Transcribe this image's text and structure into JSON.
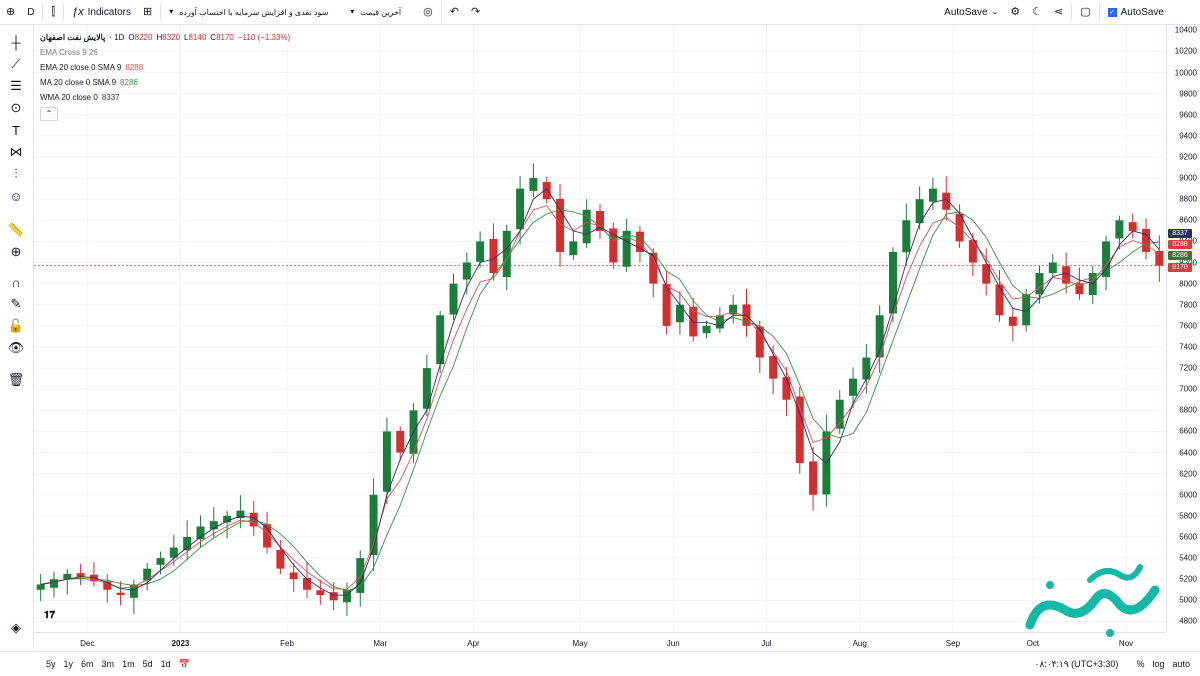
{
  "topbar": {
    "symbol": "D",
    "indicators_label": "Indicators",
    "dropdown_1": "سود نقدی و افزایش سرمایه با احتساب آورده",
    "dropdown_2": "آخرین قیمت",
    "autosave_label": "AutoSave",
    "autosave_check_label": "AutoSave"
  },
  "legend": {
    "symbol": "پالایش نفت اصفهان",
    "interval": "· 1D",
    "open_label": "O",
    "open": "8220",
    "high_label": "H",
    "high": "8320",
    "low_label": "L",
    "low": "8140",
    "close_label": "C",
    "close": "8170",
    "change": "−110 (−1.33%)",
    "ema_cross": "EMA Cross 9 26",
    "ema_row_label": "EMA 20 close 0 SMA 9",
    "ema_row_value": "8288",
    "ma_row_label": "MA 20 close 0 SMA 9",
    "ma_row_value": "8286",
    "wma_row_label": "WMA 20 close 0",
    "wma_row_value": "8337"
  },
  "price_ticks": [
    "10400",
    "10200",
    "10000",
    "9800",
    "9600",
    "9400",
    "9200",
    "9000",
    "8800",
    "8600",
    "8400",
    "8200",
    "8000",
    "7800",
    "7600",
    "7400",
    "7200",
    "7000",
    "6800",
    "6600",
    "6400",
    "6200",
    "6000",
    "5800",
    "5600",
    "5400",
    "5200",
    "5000",
    "4800"
  ],
  "time_ticks": [
    "Dec",
    "2023",
    "Feb",
    "Mar",
    "Apr",
    "May",
    "Jun",
    "Jul",
    "Aug",
    "Sep",
    "Oct",
    "Nov"
  ],
  "price_tags": [
    {
      "value": "8337",
      "color": "#2a2e6e"
    },
    {
      "value": "8288",
      "color": "#e03a3a"
    },
    {
      "value": "8286",
      "color": "#2e7d32"
    },
    {
      "value": "8170",
      "color": "#e03a3a"
    }
  ],
  "bottombar": {
    "ranges": [
      "5y",
      "1y",
      "6m",
      "3m",
      "1m",
      "5d",
      "1d"
    ],
    "time": "۰۸:۰۴:۱۹ (UTC+3:30)",
    "percent": "%",
    "log": "log",
    "auto": "auto"
  },
  "colors": {
    "up": "#26a69a",
    "up_dark": "#1b7f3b",
    "down": "#d32f2f",
    "ema": "#e05050",
    "ma": "#3e8e41",
    "wma": "#3b2a6b"
  },
  "chart_data": {
    "type": "candlestick",
    "x_axis_range": [
      "Nov 2022",
      "Nov 2023"
    ],
    "ylim": [
      4700,
      10450
    ],
    "last_price": 8170,
    "closes": [
      5150,
      5200,
      5250,
      5220,
      5180,
      5100,
      5050,
      5150,
      5300,
      5400,
      5500,
      5600,
      5700,
      5750,
      5800,
      5850,
      5700,
      5500,
      5300,
      5200,
      5100,
      5050,
      5000,
      5100,
      5400,
      6000,
      6600,
      6400,
      6800,
      7200,
      7700,
      8000,
      8200,
      8400,
      8100,
      8500,
      8900,
      9000,
      8800,
      8300,
      8400,
      8700,
      8500,
      8200,
      8500,
      8300,
      8000,
      7600,
      7800,
      7500,
      7600,
      7700,
      7800,
      7600,
      7300,
      7100,
      6900,
      6300,
      6000,
      6600,
      6900,
      7100,
      7300,
      7700,
      8300,
      8600,
      8800,
      8900,
      8700,
      8400,
      8200,
      8000,
      7700,
      7600,
      7900,
      8100,
      8200,
      8000,
      7900,
      8100,
      8400,
      8600,
      8500,
      8300,
      8170
    ]
  }
}
